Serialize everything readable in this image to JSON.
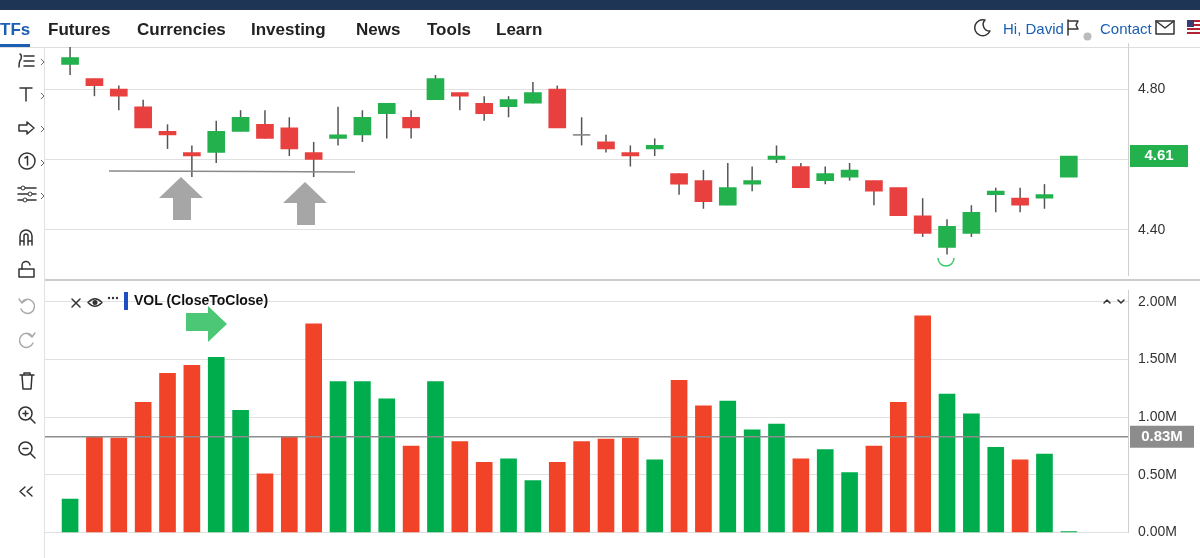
{
  "chart_data": [
    {
      "type": "other",
      "annotations": [
        "TFs",
        "Futures",
        "Currencies",
        "Investing",
        "News",
        "Tools",
        "Learn",
        "Hi, David",
        "Contact"
      ]
    },
    {
      "type": "candlestick",
      "categories": [
        null,
        null,
        null,
        null,
        null,
        null,
        null,
        null,
        null,
        null,
        null,
        null,
        null,
        null,
        null,
        null,
        null,
        null,
        null,
        null,
        null,
        null,
        null,
        null,
        null,
        null,
        null,
        null,
        null,
        null,
        null,
        null,
        null,
        null,
        null,
        null,
        null,
        null,
        null,
        null,
        null,
        null
      ],
      "ohlc": [
        [
          4.87,
          4.92,
          4.84,
          4.89
        ],
        [
          4.83,
          4.83,
          4.78,
          4.81
        ],
        [
          4.8,
          4.81,
          4.74,
          4.78
        ],
        [
          4.75,
          4.77,
          4.69,
          4.69
        ],
        [
          4.68,
          4.7,
          4.63,
          4.67
        ],
        [
          4.62,
          4.64,
          4.55,
          4.61
        ],
        [
          4.62,
          4.71,
          4.59,
          4.68
        ],
        [
          4.68,
          4.74,
          4.68,
          4.72
        ],
        [
          4.7,
          4.74,
          4.66,
          4.66
        ],
        [
          4.69,
          4.72,
          4.61,
          4.63
        ],
        [
          4.62,
          4.65,
          4.55,
          4.6
        ],
        [
          4.66,
          4.75,
          4.64,
          4.67
        ],
        [
          4.67,
          4.74,
          4.65,
          4.72
        ],
        [
          4.73,
          4.76,
          4.66,
          4.76
        ],
        [
          4.72,
          4.74,
          4.66,
          4.69
        ],
        [
          4.77,
          4.84,
          4.77,
          4.83
        ],
        [
          4.79,
          4.79,
          4.74,
          4.78
        ],
        [
          4.76,
          4.78,
          4.71,
          4.73
        ],
        [
          4.75,
          4.78,
          4.72,
          4.77
        ],
        [
          4.76,
          4.82,
          4.76,
          4.79
        ],
        [
          4.8,
          4.81,
          4.69,
          4.69
        ],
        [
          4.67,
          4.72,
          4.64,
          4.67
        ],
        [
          4.65,
          4.67,
          4.62,
          4.63
        ],
        [
          4.62,
          4.64,
          4.58,
          4.61
        ],
        [
          4.63,
          4.66,
          4.61,
          4.64
        ],
        [
          4.56,
          4.56,
          4.5,
          4.53
        ],
        [
          4.54,
          4.57,
          4.46,
          4.48
        ],
        [
          4.47,
          4.59,
          4.47,
          4.52
        ],
        [
          4.53,
          4.58,
          4.51,
          4.54
        ],
        [
          4.6,
          4.64,
          4.59,
          4.61
        ],
        [
          4.58,
          4.59,
          4.52,
          4.52
        ],
        [
          4.54,
          4.58,
          4.53,
          4.56
        ],
        [
          4.55,
          4.59,
          4.54,
          4.57
        ],
        [
          4.54,
          4.54,
          4.47,
          4.51
        ],
        [
          4.52,
          4.52,
          4.44,
          4.44
        ],
        [
          4.44,
          4.49,
          4.38,
          4.39
        ],
        [
          4.35,
          4.43,
          4.33,
          4.41
        ],
        [
          4.39,
          4.47,
          4.38,
          4.45
        ],
        [
          4.5,
          4.52,
          4.45,
          4.51
        ],
        [
          4.49,
          4.52,
          4.45,
          4.47
        ],
        [
          4.49,
          4.53,
          4.46,
          4.5
        ],
        [
          4.55,
          4.61,
          4.55,
          4.61
        ]
      ],
      "colors": [
        "#22b14c",
        "#e8403f",
        "#e8403f",
        "#e8403f",
        "#e8403f",
        "#e8403f",
        "#22b14c",
        "#22b14c",
        "#e8403f",
        "#e8403f",
        "#e8403f",
        "#22b14c",
        "#22b14c",
        "#22b14c",
        "#e8403f",
        "#22b14c",
        "#e8403f",
        "#e8403f",
        "#22b14c",
        "#22b14c",
        "#e8403f",
        "#888888",
        "#e8403f",
        "#e8403f",
        "#22b14c",
        "#e8403f",
        "#e8403f",
        "#22b14c",
        "#22b14c",
        "#22b14c",
        "#e8403f",
        "#22b14c",
        "#22b14c",
        "#e8403f",
        "#e8403f",
        "#e8403f",
        "#22b14c",
        "#22b14c",
        "#22b14c",
        "#e8403f",
        "#22b14c",
        "#22b14c"
      ],
      "ylim": [
        4.27,
        4.93
      ],
      "yticks": [
        {
          "value": 4.4,
          "label": "4.40"
        },
        {
          "value": 4.6,
          "label": null
        },
        {
          "value": 4.8,
          "label": "4.80"
        }
      ],
      "grid": "y",
      "tick_labels": "y",
      "annotations": [
        "4.61"
      ]
    },
    {
      "type": "bar",
      "title": "VOL (CloseToClose)",
      "categories": [
        null,
        null,
        null,
        null,
        null,
        null,
        null,
        null,
        null,
        null,
        null,
        null,
        null,
        null,
        null,
        null,
        null,
        null,
        null,
        null,
        null,
        null,
        null,
        null,
        null,
        null,
        null,
        null,
        null,
        null,
        null,
        null,
        null,
        null,
        null,
        null,
        null,
        null,
        null,
        null,
        null,
        null
      ],
      "values": [
        0.29,
        0.83,
        0.82,
        1.13,
        1.38,
        1.45,
        1.52,
        1.06,
        0.51,
        0.83,
        1.81,
        1.31,
        1.31,
        1.16,
        0.75,
        1.31,
        0.79,
        0.61,
        0.64,
        0.45,
        0.61,
        0.79,
        0.81,
        0.82,
        0.63,
        1.32,
        1.1,
        1.14,
        0.89,
        0.94,
        0.64,
        0.72,
        0.52,
        0.75,
        1.13,
        1.88,
        1.2,
        1.03,
        0.74,
        0.63,
        0.68,
        0
      ],
      "colors": [
        "#00ad4c",
        "#f04328",
        "#f04328",
        "#f04328",
        "#f04328",
        "#f04328",
        "#00ad4c",
        "#00ad4c",
        "#f04328",
        "#f04328",
        "#f04328",
        "#00ad4c",
        "#00ad4c",
        "#00ad4c",
        "#f04328",
        "#00ad4c",
        "#f04328",
        "#f04328",
        "#00ad4c",
        "#00ad4c",
        "#f04328",
        "#f04328",
        "#f04328",
        "#f04328",
        "#00ad4c",
        "#f04328",
        "#f04328",
        "#00ad4c",
        "#00ad4c",
        "#00ad4c",
        "#f04328",
        "#00ad4c",
        "#00ad4c",
        "#f04328",
        "#f04328",
        "#f04328",
        "#00ad4c",
        "#00ad4c",
        "#00ad4c",
        "#f04328",
        "#00ad4c",
        "#00ad4c"
      ],
      "ylim": [
        0,
        2.1
      ],
      "yticks": [
        {
          "value": 0,
          "label": "0.00M"
        },
        {
          "value": 0.5,
          "label": "0.50M"
        },
        {
          "value": 1,
          "label": "1.00M"
        },
        {
          "value": 1.5,
          "label": "1.50M"
        },
        {
          "value": 2,
          "label": "2.00M"
        }
      ],
      "grid": "y",
      "tick_labels": "y",
      "ref_lines": [
        {
          "axis": "y",
          "value": 0.83,
          "label": "0.83M",
          "color": "#8c8c8c"
        }
      ]
    }
  ]
}
